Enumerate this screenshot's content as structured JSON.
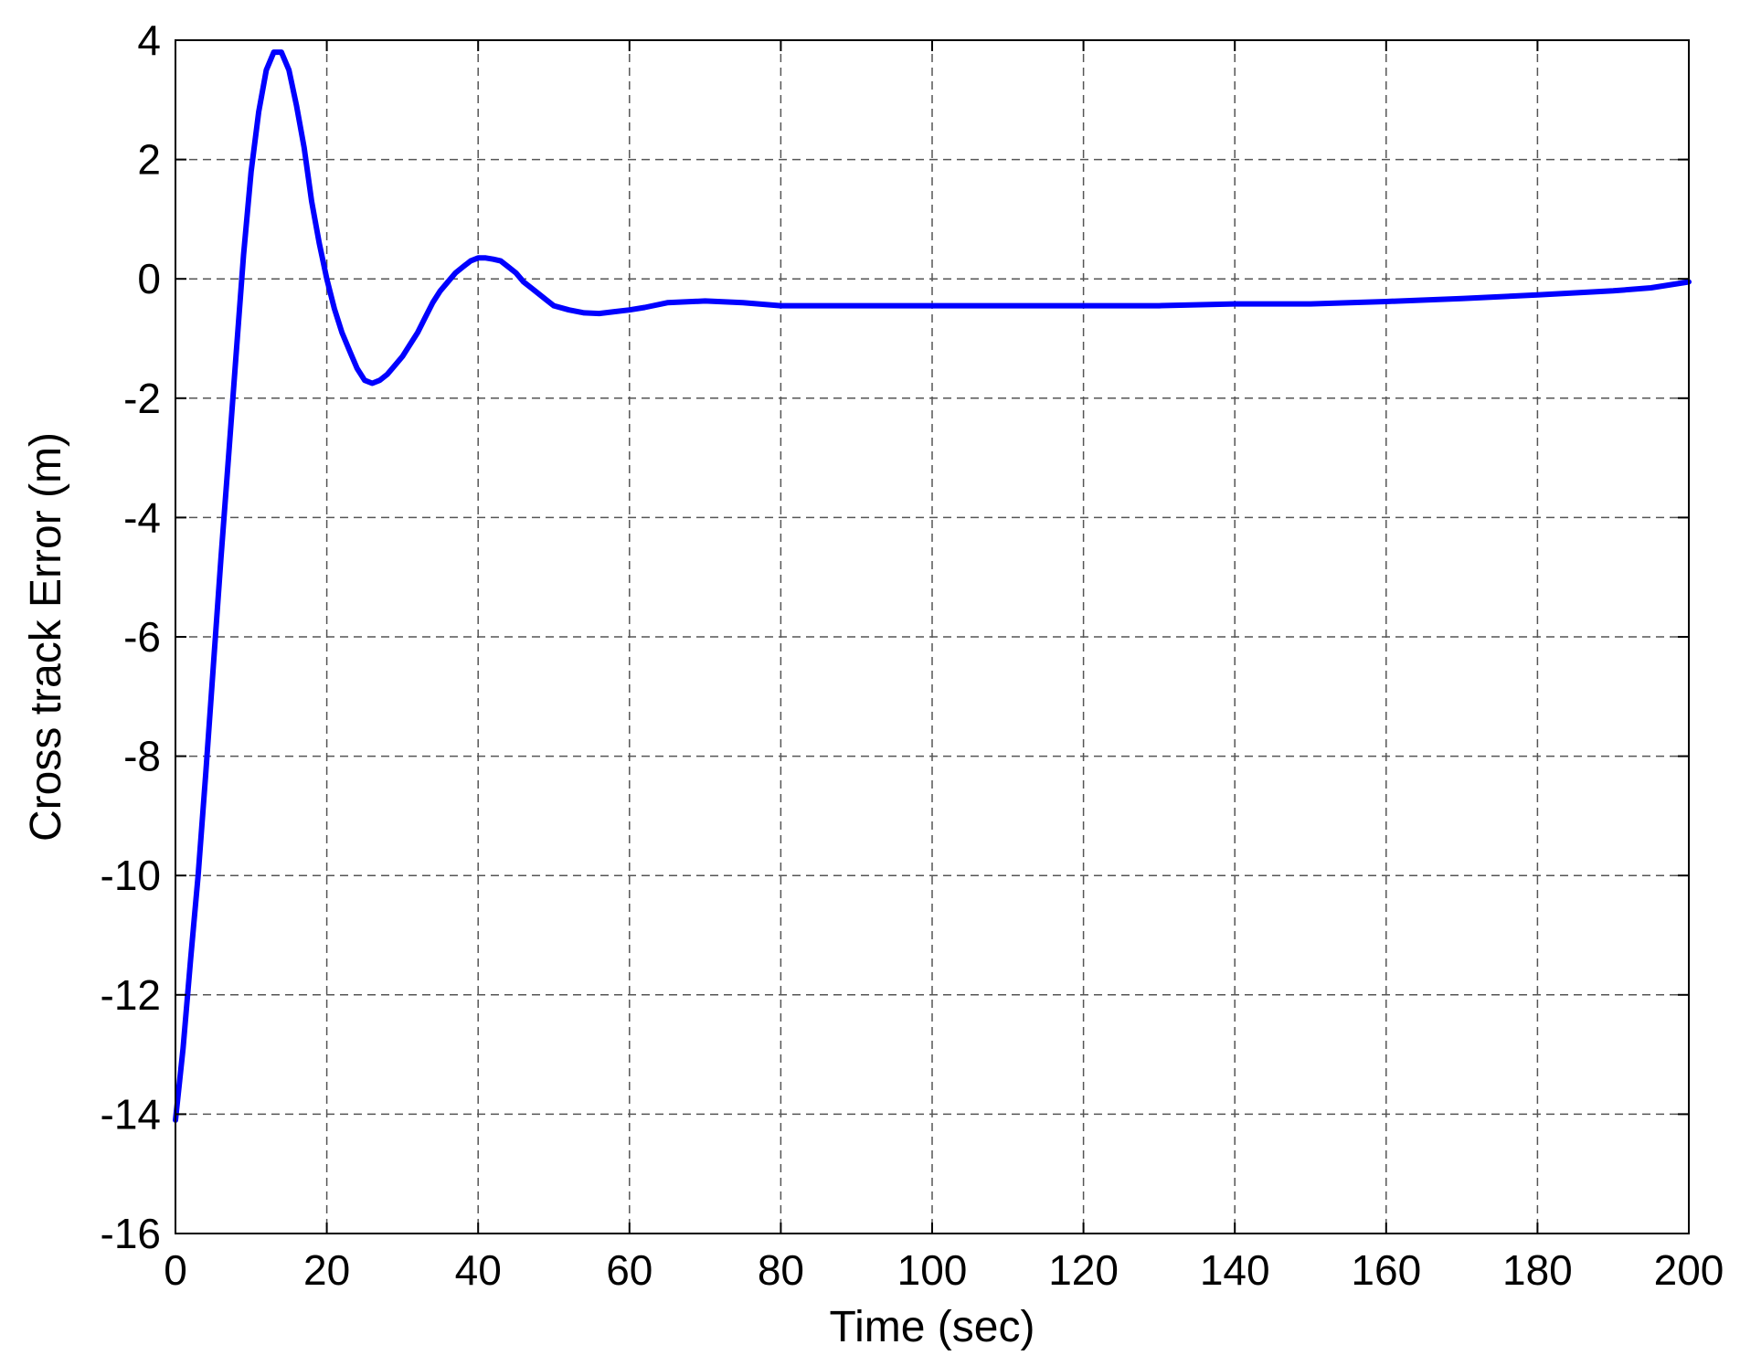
{
  "chart_data": {
    "type": "line",
    "title": "",
    "xlabel": "Time (sec)",
    "ylabel": "Cross track Error (m)",
    "xlim": [
      0,
      200
    ],
    "ylim": [
      -16,
      4
    ],
    "xticks": [
      0,
      20,
      40,
      60,
      80,
      100,
      120,
      140,
      160,
      180,
      200
    ],
    "yticks": [
      4,
      2,
      0,
      -2,
      -4,
      -6,
      -8,
      -10,
      -12,
      -14,
      -16
    ],
    "xtick_labels": [
      "0",
      "20",
      "40",
      "60",
      "80",
      "100",
      "120",
      "140",
      "160",
      "180",
      "200"
    ],
    "ytick_labels": [
      "4",
      "2",
      "0",
      "-2",
      "-4",
      "-6",
      "-8",
      "-10",
      "-12",
      "-14",
      "-16"
    ],
    "grid": true,
    "series": [
      {
        "color": "#0000ff",
        "x": [
          0,
          1,
          2,
          3,
          4,
          5,
          6,
          7,
          8,
          9,
          10,
          11,
          12,
          13,
          14,
          15,
          16,
          17,
          18,
          19,
          20,
          21,
          22,
          23,
          24,
          25,
          26,
          27,
          28,
          29,
          30,
          31,
          32,
          33,
          34,
          35,
          36,
          37,
          38,
          39,
          40,
          41,
          42,
          43,
          44,
          45,
          46,
          47,
          48,
          49,
          50,
          52,
          54,
          56,
          58,
          60,
          62,
          65,
          70,
          75,
          80,
          90,
          100,
          110,
          120,
          130,
          140,
          150,
          160,
          170,
          180,
          190,
          195,
          200
        ],
        "y": [
          -14.1,
          -12.9,
          -11.4,
          -10.0,
          -8.3,
          -6.5,
          -4.7,
          -3.0,
          -1.3,
          0.4,
          1.8,
          2.8,
          3.5,
          3.8,
          3.8,
          3.5,
          2.9,
          2.2,
          1.3,
          0.6,
          0.0,
          -0.5,
          -0.9,
          -1.2,
          -1.5,
          -1.7,
          -1.75,
          -1.7,
          -1.6,
          -1.45,
          -1.3,
          -1.1,
          -0.9,
          -0.65,
          -0.4,
          -0.2,
          -0.05,
          0.1,
          0.2,
          0.3,
          0.35,
          0.35,
          0.33,
          0.3,
          0.2,
          0.1,
          -0.05,
          -0.15,
          -0.25,
          -0.35,
          -0.45,
          -0.52,
          -0.57,
          -0.58,
          -0.55,
          -0.52,
          -0.48,
          -0.4,
          -0.37,
          -0.4,
          -0.45,
          -0.45,
          -0.45,
          -0.45,
          -0.45,
          -0.45,
          -0.42,
          -0.42,
          -0.38,
          -0.33,
          -0.27,
          -0.2,
          -0.15,
          -0.05
        ]
      }
    ]
  }
}
